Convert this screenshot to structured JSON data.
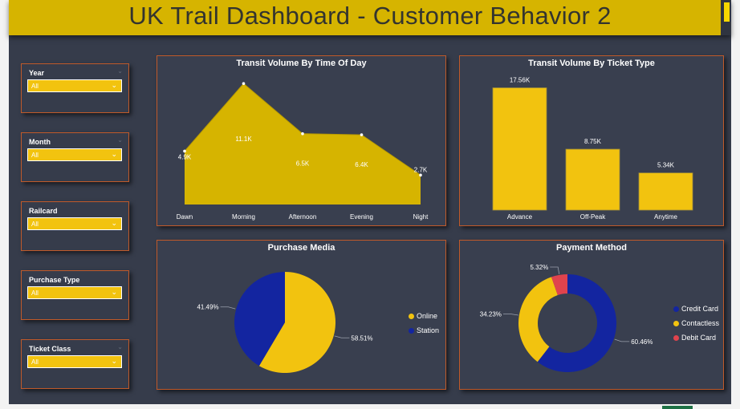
{
  "header": {
    "title": "UK Trail Dashboard - Customer Behavior 2"
  },
  "slicers": [
    {
      "label": "Year",
      "value": "All"
    },
    {
      "label": "Month",
      "value": "All"
    },
    {
      "label": "Railcard",
      "value": "All"
    },
    {
      "label": "Purchase Type",
      "value": "All"
    },
    {
      "label": "Ticket Class",
      "value": "All"
    }
  ],
  "colors": {
    "accent": "#f2c30f",
    "area": "#d6b400",
    "navy": "#1325a0",
    "red": "#e0434d",
    "border": "#c05a2a"
  },
  "chart_data": [
    {
      "type": "area",
      "title": "Transit Volume By Time Of Day",
      "categories": [
        "Dawn",
        "Morning",
        "Afternoon",
        "Evening",
        "Night"
      ],
      "values": [
        4900,
        11100,
        6500,
        6400,
        2700
      ],
      "data_labels": [
        "4.9K",
        "11.1K",
        "6.5K",
        "6.4K",
        "2.7K"
      ],
      "ylim": [
        0,
        12000
      ]
    },
    {
      "type": "bar",
      "title": "Transit Volume By Ticket Type",
      "categories": [
        "Advance",
        "Off-Peak",
        "Anytime"
      ],
      "values": [
        17560,
        8750,
        5340
      ],
      "data_labels": [
        "17.56K",
        "8.75K",
        "5.34K"
      ],
      "ylim": [
        0,
        19000
      ]
    },
    {
      "type": "pie",
      "title": "Purchase Media",
      "categories": [
        "Online",
        "Station"
      ],
      "values": [
        58.51,
        41.49
      ],
      "data_labels": [
        "58.51%",
        "41.49%"
      ],
      "colors": [
        "#f2c30f",
        "#1325a0"
      ],
      "legend": "right"
    },
    {
      "type": "pie",
      "subtype": "donut",
      "title": "Payment Method",
      "categories": [
        "Credit Card",
        "Contactless",
        "Debit Card"
      ],
      "values": [
        60.46,
        34.23,
        5.32
      ],
      "data_labels": [
        "60.46%",
        "34.23%",
        "5.32%"
      ],
      "colors": [
        "#1325a0",
        "#f2c30f",
        "#e0434d"
      ],
      "legend": "right"
    }
  ]
}
